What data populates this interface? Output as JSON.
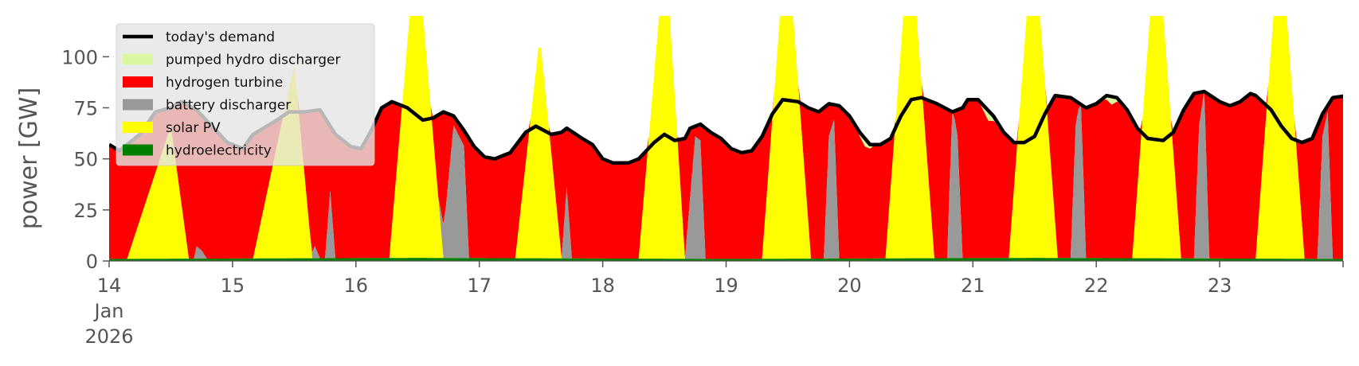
{
  "chart_data": {
    "type": "area",
    "ylabel": "power [GW]",
    "ylim": [
      0,
      120
    ],
    "yticks": [
      0,
      25,
      50,
      75,
      100
    ],
    "xlim": [
      "2026-01-14T00:00",
      "2026-01-24T00:00"
    ],
    "x_tick_labels": [
      "14",
      "15",
      "16",
      "17",
      "18",
      "19",
      "20",
      "21",
      "22",
      "23"
    ],
    "x_month_label": "Jan",
    "x_year_label": "2026",
    "grid": false,
    "legend_position": "top-left",
    "colors": {
      "hydroelectricity": "#008000",
      "solar": "#ffff00",
      "battery": "#999999",
      "hydrogen": "#ff0000",
      "pumped_hydro": "#d9f7a1",
      "demand": "#000000"
    },
    "legend": [
      {
        "label": "today's demand",
        "type": "line",
        "color": "#000000"
      },
      {
        "label": "pumped hydro discharger",
        "type": "patch",
        "color": "#d9f7a1"
      },
      {
        "label": "hydrogen turbine",
        "type": "patch",
        "color": "#ff0000"
      },
      {
        "label": "battery discharger",
        "type": "patch",
        "color": "#999999"
      },
      {
        "label": "solar PV",
        "type": "patch",
        "color": "#ffff00"
      },
      {
        "label": "hydroelectricity",
        "type": "patch",
        "color": "#008000"
      }
    ],
    "series": [
      {
        "key": "hydro",
        "name": "hydroelectricity",
        "hours": [
          0,
          60,
          120,
          180,
          240
        ],
        "values": [
          1,
          1.5,
          1,
          1.5,
          1
        ]
      },
      {
        "key": "solar",
        "name": "solar PV",
        "hours": [
          0,
          60,
          120,
          180,
          240
        ],
        "peaks": [
          {
            "day": 0,
            "start": 3.5,
            "peak_start": 12,
            "peak_end": 12,
            "end": 15.5,
            "peak": 65
          },
          {
            "day": 1,
            "start": 4,
            "peak_start": 12,
            "peak_end": 12,
            "end": 15.5,
            "peak": 95
          },
          {
            "day": 2,
            "start": 6.5,
            "peak_start": 10.5,
            "peak_end": 13,
            "end": 17,
            "peak": 120
          },
          {
            "day": 3,
            "start": 7,
            "peak_start": 11.5,
            "peak_end": 12,
            "end": 16,
            "peak": 103
          },
          {
            "day": 4,
            "start": 7,
            "peak_start": 11,
            "peak_end": 13,
            "end": 16,
            "peak": 120
          },
          {
            "day": 5,
            "start": 7,
            "peak_start": 10.5,
            "peak_end": 13,
            "end": 16.5,
            "peak": 120
          },
          {
            "day": 6,
            "start": 7,
            "peak_start": 10.5,
            "peak_end": 13,
            "end": 16.5,
            "peak": 120
          },
          {
            "day": 7,
            "start": 7,
            "peak_start": 10.5,
            "peak_end": 13,
            "end": 16.5,
            "peak": 120
          },
          {
            "day": 8,
            "start": 7,
            "peak_start": 10.5,
            "peak_end": 13,
            "end": 16.5,
            "peak": 120
          },
          {
            "day": 9,
            "start": 7,
            "peak_start": 10.5,
            "peak_end": 13,
            "end": 16.5,
            "peak": 120
          }
        ]
      },
      {
        "key": "battery",
        "name": "battery discharger",
        "points": [
          [
            16.5,
            0
          ],
          [
            17,
            6
          ],
          [
            18,
            4
          ],
          [
            19,
            0
          ],
          [
            39,
            0
          ],
          [
            40,
            6
          ],
          [
            41,
            0
          ],
          [
            42,
            0
          ],
          [
            43,
            33
          ],
          [
            44,
            0
          ],
          [
            64,
            0
          ],
          [
            65.5,
            25
          ],
          [
            67,
            65
          ],
          [
            69,
            55
          ],
          [
            70,
            0
          ],
          [
            88,
            0
          ],
          [
            89,
            35
          ],
          [
            90,
            0
          ],
          [
            112,
            0
          ],
          [
            114,
            60
          ],
          [
            115,
            58
          ],
          [
            116,
            0
          ],
          [
            139,
            0
          ],
          [
            140,
            60
          ],
          [
            141,
            68
          ],
          [
            142,
            0
          ],
          [
            163,
            0
          ],
          [
            164,
            75
          ],
          [
            165,
            60
          ],
          [
            166,
            0
          ],
          [
            187,
            0
          ],
          [
            188,
            65
          ],
          [
            189,
            80
          ],
          [
            190,
            0
          ],
          [
            211,
            0
          ],
          [
            212,
            65
          ],
          [
            213,
            82
          ],
          [
            214,
            0
          ],
          [
            235,
            0
          ],
          [
            236,
            60
          ],
          [
            237,
            72
          ],
          [
            238,
            0
          ]
        ]
      },
      {
        "key": "demand",
        "name": "today's demand",
        "points": [
          [
            0,
            57
          ],
          [
            2,
            54
          ],
          [
            6,
            62
          ],
          [
            9,
            73
          ],
          [
            12,
            75
          ],
          [
            14,
            78
          ],
          [
            17,
            74
          ],
          [
            20,
            66
          ],
          [
            23,
            58
          ],
          [
            26,
            55
          ],
          [
            28,
            62
          ],
          [
            32,
            68
          ],
          [
            35,
            73
          ],
          [
            38,
            73
          ],
          [
            41,
            74
          ],
          [
            44,
            62
          ],
          [
            47,
            56
          ],
          [
            49,
            55
          ],
          [
            51,
            64
          ],
          [
            53,
            75
          ],
          [
            55,
            78
          ],
          [
            58,
            75
          ],
          [
            61,
            69
          ],
          [
            63,
            70
          ],
          [
            65,
            73
          ],
          [
            67,
            71
          ],
          [
            69,
            64
          ],
          [
            71,
            56
          ],
          [
            73,
            51
          ],
          [
            75,
            50
          ],
          [
            78,
            53
          ],
          [
            81,
            63
          ],
          [
            83,
            66
          ],
          [
            86,
            62
          ],
          [
            88,
            63
          ],
          [
            89,
            65
          ],
          [
            92,
            60
          ],
          [
            94,
            57
          ],
          [
            96,
            50
          ],
          [
            98,
            48
          ],
          [
            101,
            48
          ],
          [
            103,
            50
          ],
          [
            106,
            58
          ],
          [
            108,
            62
          ],
          [
            110,
            59
          ],
          [
            112,
            60
          ],
          [
            113,
            65
          ],
          [
            115,
            67
          ],
          [
            117,
            63
          ],
          [
            119,
            60
          ],
          [
            121,
            55
          ],
          [
            123,
            53
          ],
          [
            125,
            54
          ],
          [
            127,
            61
          ],
          [
            129,
            72
          ],
          [
            131,
            79
          ],
          [
            134,
            78
          ],
          [
            136,
            75
          ],
          [
            138,
            73
          ],
          [
            140,
            77
          ],
          [
            142,
            76
          ],
          [
            144,
            71
          ],
          [
            146,
            63
          ],
          [
            148,
            57
          ],
          [
            150,
            57
          ],
          [
            152,
            60
          ],
          [
            154,
            71
          ],
          [
            156,
            79
          ],
          [
            158,
            80
          ],
          [
            161,
            77
          ],
          [
            164,
            73
          ],
          [
            166,
            75
          ],
          [
            167,
            79
          ],
          [
            169,
            79
          ],
          [
            172,
            71
          ],
          [
            174,
            63
          ],
          [
            176,
            58
          ],
          [
            178,
            58
          ],
          [
            180,
            61
          ],
          [
            182,
            72
          ],
          [
            184,
            81
          ],
          [
            187,
            80
          ],
          [
            190,
            75
          ],
          [
            192,
            77
          ],
          [
            194,
            81
          ],
          [
            196,
            80
          ],
          [
            198,
            74
          ],
          [
            200,
            65
          ],
          [
            202,
            60
          ],
          [
            205,
            59
          ],
          [
            207,
            63
          ],
          [
            209,
            74
          ],
          [
            211,
            82
          ],
          [
            213,
            83
          ],
          [
            216,
            78
          ],
          [
            218,
            76
          ],
          [
            220,
            78
          ],
          [
            222,
            82
          ],
          [
            223,
            81
          ],
          [
            226,
            74
          ],
          [
            228,
            66
          ],
          [
            230,
            60
          ],
          [
            232,
            58
          ],
          [
            234,
            60
          ],
          [
            236,
            72
          ],
          [
            238,
            80
          ],
          [
            241,
            81
          ],
          [
            243,
            77
          ],
          [
            245,
            74
          ],
          [
            247,
            76
          ],
          [
            249,
            78
          ],
          [
            251,
            77
          ],
          [
            253,
            70
          ],
          [
            255,
            66
          ],
          [
            256,
            62
          ]
        ]
      },
      {
        "key": "pumped",
        "name": "pumped hydro discharger",
        "points": [
          [
            0,
            0
          ],
          [
            145,
            0
          ],
          [
            147,
            4
          ],
          [
            149,
            0
          ],
          [
            169,
            0
          ],
          [
            171,
            5
          ],
          [
            173,
            0
          ],
          [
            193,
            0
          ],
          [
            195,
            4
          ],
          [
            197,
            0
          ],
          [
            256,
            0
          ]
        ]
      }
    ]
  }
}
